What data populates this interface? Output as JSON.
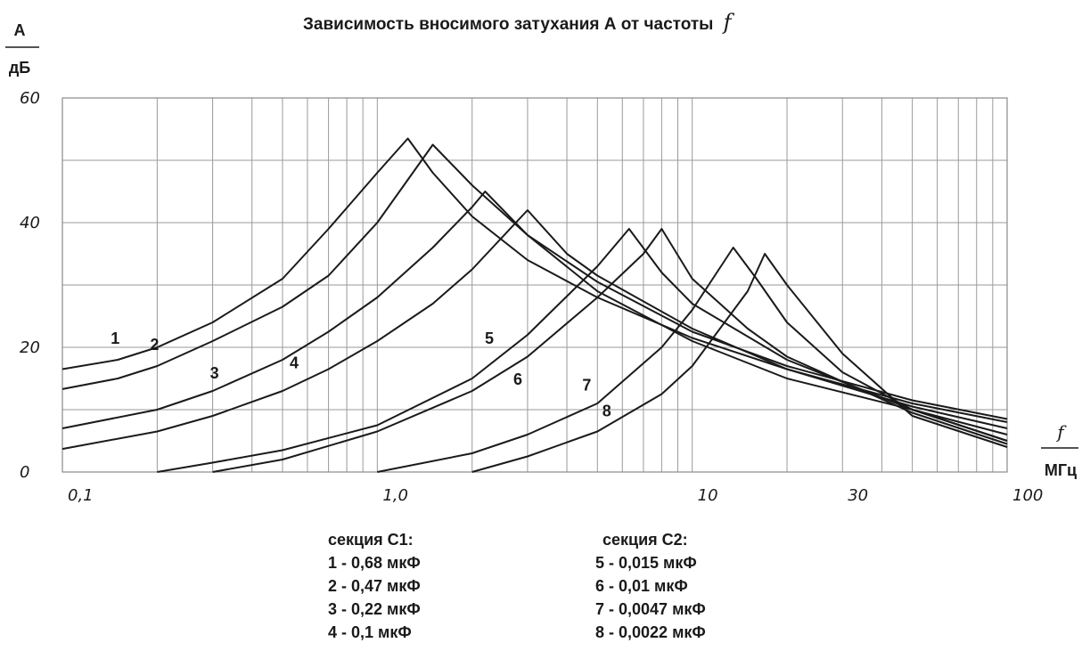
{
  "chart_data": {
    "type": "line",
    "title_text": "Зависимость вносимого затухания А от частоты",
    "title_symbol": "f",
    "ylabel": "А",
    "yunit": "дБ",
    "xlabel": "f",
    "xunit": "МГц",
    "x_scale": "log",
    "xlim": [
      0.1,
      100
    ],
    "ylim": [
      0,
      60
    ],
    "grid": true,
    "x_ticks": [
      {
        "value": 0.1,
        "label": "0,1"
      },
      {
        "value": 1,
        "label": "1,0"
      },
      {
        "value": 10,
        "label": "10"
      },
      {
        "value": 30,
        "label": "30"
      },
      {
        "value": 100,
        "label": "100"
      }
    ],
    "y_ticks": [
      {
        "value": 0,
        "label": "0"
      },
      {
        "value": 20,
        "label": "20"
      },
      {
        "value": 40,
        "label": "40"
      },
      {
        "value": 60,
        "label": "60"
      }
    ],
    "series": [
      {
        "name": "1",
        "x": [
          0.1,
          0.15,
          0.2,
          0.3,
          0.5,
          0.7,
          1.0,
          1.25,
          1.5,
          2.0,
          3.0,
          5.0,
          10,
          20,
          50,
          100
        ],
        "y": [
          16.5,
          18,
          20,
          24,
          31,
          39,
          48,
          53.5,
          48,
          41,
          34,
          28,
          21.5,
          16.5,
          11,
          8
        ]
      },
      {
        "name": "2",
        "x": [
          0.1,
          0.15,
          0.2,
          0.3,
          0.5,
          0.7,
          1.0,
          1.5,
          2.0,
          3.0,
          5.0,
          10,
          20,
          50,
          100
        ],
        "y": [
          13.3,
          15,
          17,
          21,
          26.5,
          31.5,
          40,
          52.5,
          46,
          38,
          30.5,
          22.5,
          17,
          11.5,
          8.5
        ]
      },
      {
        "name": "3",
        "x": [
          0.1,
          0.2,
          0.3,
          0.5,
          0.7,
          1.0,
          1.5,
          2.0,
          2.2,
          3.0,
          5.0,
          10,
          20,
          50,
          100
        ],
        "y": [
          7,
          10,
          13,
          18,
          22.5,
          28,
          36,
          42.5,
          45,
          38,
          29,
          21,
          15,
          10,
          6
        ]
      },
      {
        "name": "4",
        "x": [
          0.1,
          0.2,
          0.3,
          0.5,
          0.7,
          1.0,
          1.5,
          2.0,
          3.0,
          4.0,
          5.0,
          10,
          20,
          50,
          100
        ],
        "y": [
          3.7,
          6.5,
          9,
          13,
          16.5,
          21,
          27,
          32.5,
          42,
          35,
          31.5,
          23,
          16.5,
          10.5,
          7
        ]
      },
      {
        "name": "5",
        "x": [
          0.2,
          0.3,
          0.5,
          1.0,
          2.0,
          3.0,
          5.0,
          6.3,
          8.0,
          10,
          20,
          50,
          100
        ],
        "y": [
          0,
          1.5,
          3.5,
          7.5,
          15,
          22,
          33,
          39,
          32,
          27,
          18,
          10,
          5
        ]
      },
      {
        "name": "6",
        "x": [
          0.3,
          0.5,
          1.0,
          2.0,
          3.0,
          5.0,
          7.0,
          8.0,
          10,
          15,
          20,
          50,
          100
        ],
        "y": [
          0,
          2,
          6.5,
          13,
          18.5,
          28,
          35,
          39,
          31,
          23,
          18.5,
          9.5,
          4.5
        ]
      },
      {
        "name": "7",
        "x": [
          1.0,
          2.0,
          3.0,
          5.0,
          8.0,
          10,
          13.5,
          16,
          20,
          30,
          50,
          100
        ],
        "y": [
          0,
          3,
          6,
          11,
          20,
          26,
          36,
          31,
          24,
          16,
          10,
          5
        ]
      },
      {
        "name": "8",
        "x": [
          2.0,
          3.0,
          5.0,
          8.0,
          10,
          15,
          17,
          20,
          30,
          50,
          100
        ],
        "y": [
          0,
          2.5,
          6.5,
          12.5,
          17,
          29,
          35,
          30,
          19,
          9,
          4
        ]
      }
    ]
  },
  "legend": {
    "c1_title": "секция С1:",
    "c1_items": [
      "1 - 0,68 мкФ",
      "2 - 0,47 мкФ",
      "3 - 0,22 мкФ",
      "4 - 0,1 мкФ"
    ],
    "c2_title": "секция С2:",
    "c2_items": [
      "5 - 0,015 мкФ",
      "6 - 0,01 мкФ",
      "7 - 0,0047 мкФ",
      "8 - 0,0022 мкФ"
    ]
  },
  "colors": {
    "line": "#1a1a1a",
    "grid": "#9a9a9a",
    "frame": "#8a8a8a"
  }
}
